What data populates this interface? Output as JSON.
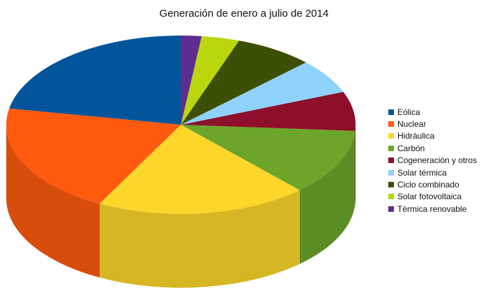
{
  "chart_data": {
    "type": "pie",
    "title": "Generación de enero a julio de 2014",
    "three_d": true,
    "legend_position": "right",
    "slices": [
      {
        "label": "Eólica",
        "value": 22.1,
        "color": "#02559a"
      },
      {
        "label": "Nuclear",
        "value": 20.2,
        "color": "#ff5a0e"
      },
      {
        "label": "Hidráulica",
        "value": 19.6,
        "color": "#fdd62a"
      },
      {
        "label": "Carbón",
        "value": 12.0,
        "color": "#6ca52a"
      },
      {
        "label": "Cogeneración y otros",
        "value": 7.1,
        "color": "#8d0f2a"
      },
      {
        "label": "Solar térmica",
        "value": 6.3,
        "color": "#8fd2fb"
      },
      {
        "label": "Ciclo combinado",
        "value": 7.3,
        "color": "#3c4f06"
      },
      {
        "label": "Solar fotovoltaica",
        "value": 3.5,
        "color": "#bcd60e"
      },
      {
        "label": "Térmica renovable",
        "value": 1.9,
        "color": "#5e2d8f"
      }
    ]
  }
}
